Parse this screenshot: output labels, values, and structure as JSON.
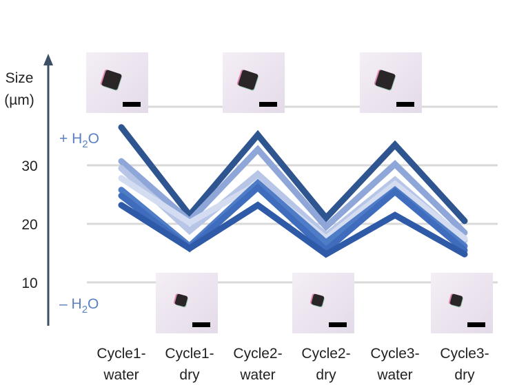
{
  "chart_data": {
    "type": "line",
    "ylabel_line1": "Size",
    "ylabel_line2": "(µm)",
    "yticks": [
      10,
      20,
      30
    ],
    "ylim": [
      4,
      46
    ],
    "grid": true,
    "categories": [
      [
        "Cycle1-",
        "water"
      ],
      [
        "Cycle1-",
        "dry"
      ],
      [
        "Cycle2-",
        "water"
      ],
      [
        "Cycle2-",
        "dry"
      ],
      [
        "Cycle3-",
        "water"
      ],
      [
        "Cycle3-",
        "dry"
      ]
    ],
    "series": [
      {
        "values": [
          36.5,
          21.5,
          35.2,
          21.0,
          33.5,
          20.5
        ],
        "color": "#2f5590"
      },
      {
        "values": [
          30.7,
          20.5,
          32.7,
          19.5,
          30.2,
          18.5
        ],
        "color": "#8ea6d8"
      },
      {
        "values": [
          29.5,
          18.8,
          28.5,
          18.0,
          27.5,
          17.2
        ],
        "color": "#b7c6e6"
      },
      {
        "values": [
          27.8,
          20.2,
          26.8,
          17.5,
          26.8,
          17.5
        ],
        "color": "#d3dcf0"
      },
      {
        "values": [
          25.8,
          16.2,
          27.0,
          16.8,
          25.8,
          16.2
        ],
        "color": "#4f7cc6"
      },
      {
        "values": [
          24.8,
          15.8,
          26.2,
          15.5,
          25.5,
          15.5
        ],
        "color": "#3f6cbc"
      },
      {
        "values": [
          23.2,
          15.8,
          23.2,
          14.8,
          21.5,
          14.8
        ],
        "color": "#2f5aa8"
      }
    ]
  },
  "annotations": {
    "plus_h2o": {
      "sign": "+ H",
      "sub": "2",
      "tail": "O"
    },
    "minus_h2o": {
      "sign": "– H",
      "sub": "2",
      "tail": "O"
    },
    "color": "#5a7fc2"
  },
  "insets": {
    "water": [
      0,
      2,
      4
    ],
    "dry": [
      1,
      3,
      5
    ]
  }
}
